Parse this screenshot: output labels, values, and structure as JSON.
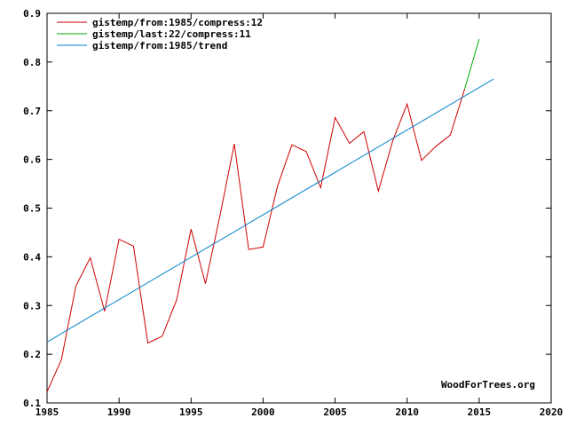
{
  "chart_data": {
    "type": "line",
    "xlim": [
      1985,
      2020
    ],
    "ylim": [
      0.1,
      0.9
    ],
    "xticks": [
      "1985",
      "1990",
      "1995",
      "2000",
      "2005",
      "2010",
      "2015",
      "2020"
    ],
    "yticks": [
      "0.1",
      "0.2",
      "0.3",
      "0.4",
      "0.5",
      "0.6",
      "0.7",
      "0.8",
      "0.9"
    ],
    "grid": false,
    "legend_position": "top-left",
    "series": [
      {
        "name": "gistemp/from:1985/compress:12",
        "color": "#cc0000",
        "x": [
          1985,
          1986,
          1987,
          1988,
          1989,
          1990,
          1991,
          1992,
          1993,
          1994,
          1995,
          1996,
          1997,
          1998,
          1999,
          2000,
          2001,
          2002,
          2003,
          2004,
          2005,
          2006,
          2007,
          2008,
          2009,
          2010,
          2011,
          2012,
          2013,
          2014
        ],
        "y": [
          0.123,
          0.189,
          0.34,
          0.398,
          0.288,
          0.436,
          0.422,
          0.223,
          0.237,
          0.312,
          0.457,
          0.345,
          0.483,
          0.632,
          0.415,
          0.42,
          0.545,
          0.63,
          0.616,
          0.542,
          0.686,
          0.633,
          0.657,
          0.535,
          0.638,
          0.714,
          0.598,
          0.627,
          0.65,
          0.745
        ]
      },
      {
        "name": "gistemp/last:22/compress:11",
        "color": "#00aa00",
        "x": [
          2014,
          2015
        ],
        "y": [
          0.745,
          0.847
        ]
      },
      {
        "name": "gistemp/from:1985/trend",
        "color": "#0080cc",
        "x": [
          1985,
          2016
        ],
        "y": [
          0.225,
          0.765
        ]
      }
    ]
  },
  "credit": "WoodForTrees.org"
}
